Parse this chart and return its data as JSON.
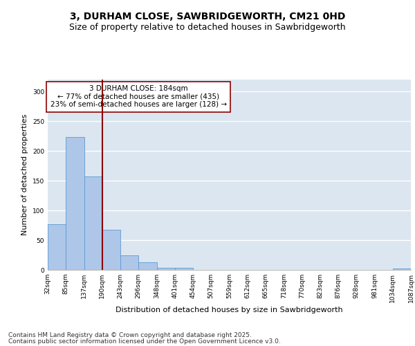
{
  "title_line1": "3, DURHAM CLOSE, SAWBRIDGEWORTH, CM21 0HD",
  "title_line2": "Size of property relative to detached houses in Sawbridgeworth",
  "xlabel": "Distribution of detached houses by size in Sawbridgeworth",
  "ylabel": "Number of detached properties",
  "bar_values": [
    77,
    224,
    157,
    68,
    25,
    13,
    4,
    3,
    0,
    0,
    0,
    0,
    0,
    0,
    0,
    0,
    0,
    0,
    0,
    2
  ],
  "bar_labels": [
    "32sqm",
    "85sqm",
    "137sqm",
    "190sqm",
    "243sqm",
    "296sqm",
    "348sqm",
    "401sqm",
    "454sqm",
    "507sqm",
    "559sqm",
    "612sqm",
    "665sqm",
    "718sqm",
    "770sqm",
    "823sqm",
    "876sqm",
    "928sqm",
    "981sqm",
    "1034sqm",
    "1087sqm"
  ],
  "bar_color": "#aec6e8",
  "bar_edge_color": "#5b9bd5",
  "background_color": "#dce6f0",
  "grid_color": "#ffffff",
  "vline_color": "#8b0000",
  "annotation_text": "3 DURHAM CLOSE: 184sqm\n← 77% of detached houses are smaller (435)\n23% of semi-detached houses are larger (128) →",
  "annotation_box_color": "#ffffff",
  "annotation_box_edge": "#8b0000",
  "ylim": [
    0,
    320
  ],
  "yticks": [
    0,
    50,
    100,
    150,
    200,
    250,
    300
  ],
  "footer_line1": "Contains HM Land Registry data © Crown copyright and database right 2025.",
  "footer_line2": "Contains public sector information licensed under the Open Government Licence v3.0.",
  "title_fontsize": 10,
  "subtitle_fontsize": 9,
  "axis_label_fontsize": 8,
  "tick_fontsize": 6.5,
  "annotation_fontsize": 7.5,
  "footer_fontsize": 6.5
}
